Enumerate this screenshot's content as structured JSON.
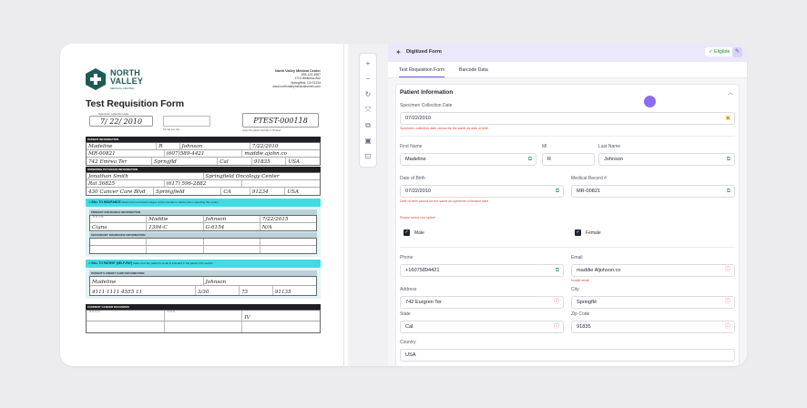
{
  "document": {
    "logo_line1": "NORTH",
    "logo_line2": "VALLEY",
    "logo_sub": "MEDICAL CENTER",
    "clinic_name": "North Valley Medical Center",
    "clinic_phone": "555-123-4567",
    "clinic_addr1": "1713 Wellness Ave",
    "clinic_addr2": "Springfield, CA 91234",
    "clinic_web": "www.northvalleymedicalcenter.com",
    "title": "Test Requisition Form",
    "specimen_label": "Specimen collection date",
    "specimen_date": "7/ 22/ 2010",
    "lab_use_label": "For lab use only",
    "specimen_id": "PTEST-000118",
    "specimen_id_label": "Apply the patient barcode or ID label",
    "patient_info_header": "PATIENT INFORMATION",
    "hw_first_name": "Madeline",
    "hw_mi": "R",
    "hw_last_name": "Johnson",
    "hw_dob": "7/22/2010",
    "hw_mrn": "MR-00821",
    "hw_phone": "(607)589-4421",
    "hw_email": "maddie.ajohn.co",
    "hw_address": "742 Emrea Ter",
    "hw_city": "Sprngfld",
    "hw_state": "Cal",
    "hw_zip": "91835",
    "hw_country": "USA",
    "physician_header": "ORDERING PHYSICIAN INFORMATION",
    "hw_physician": "Jonathan Smith",
    "hw_institution": "Springfield Oncology Center",
    "hw_npi": "Ral 36825",
    "hw_phys_phone": "(617) 596-2882",
    "hw_phys_address": "430 Cancer Care Blvd",
    "hw_phys_city": "Springfield",
    "hw_phys_state": "CA",
    "hw_phys_zip": "91234",
    "hw_phys_country": "USA",
    "bill_insurance": "BILL TO INSURANCE",
    "bill_insurance_note": "Attach front and back images of the insurance card(s) when selecting this option",
    "primary_ins_header": "PRIMARY INSURANCE INFORMATION",
    "hw_ins_first": "Maddie",
    "hw_ins_last": "Johnson",
    "hw_ins_dob": "7/22/2015",
    "hw_ins_company": "Cigna",
    "hw_policy": "1394-C",
    "hw_group": "G-6154",
    "hw_auth": "N/A",
    "secondary_ins_header": "SECONDARY INSURANCE INFORMATION",
    "bill_patient": "BILL TO PATIENT (SELF-PAY)",
    "bill_patient_note": "Make sure the patient's email is included in the patient info section",
    "card_header": "PATIENT'S CREDIT CARD INFORMATION",
    "hw_card_first": "Madeline",
    "hw_card_last": "Johnson",
    "hw_card_number": "4111 1111 4555 11",
    "hw_card_exp": "3/30",
    "hw_card_cvv": "73",
    "hw_card_zip": "91135",
    "diagnosis_header": "CURRENT CANCER DIAGNOSIS",
    "hw_stage": "IV"
  },
  "toolbar": {
    "zoom_in": "+",
    "zoom_out": "−",
    "rotate": "↻",
    "fit": "⤧",
    "copy": "⧉",
    "save": "▣",
    "export": "⊡"
  },
  "form": {
    "header_title": "Digitized Form",
    "eligible": "✓ Eligible",
    "tabs": [
      "Test Requisition Form",
      "Barcode Data"
    ],
    "section_title": "Patient Information",
    "specimen_label": "Specimen Collection Date",
    "specimen_value": "07/22/2010",
    "specimen_error": "Specimen collection date cannot be the same as date of birth",
    "first_name_label": "First Name",
    "first_name_value": "Madeline",
    "mi_label": "MI",
    "mi_value": "R",
    "last_name_label": "Last Name",
    "last_name_value": "Johnson",
    "dob_label": "Date of Birth",
    "dob_value": "07/22/2010",
    "dob_error": "Date of birth cannot be the same as specimen collection date",
    "mrn_label": "Medical Record #",
    "mrn_value": "MR-00821",
    "sex_error": "Please select one option",
    "male_label": "Male",
    "female_label": "Female",
    "phone_label": "Phone",
    "phone_value": "+16075894421",
    "email_label": "Email",
    "email_value": "maddie A​ljohson.co",
    "email_error": "Invalid email",
    "address_label": "Address",
    "address_value": "742 Eurgren Ter",
    "city_label": "City",
    "city_value": "Springflé",
    "state_label": "State",
    "state_value": "Cal",
    "zip_label": "Zip Code",
    "zip_value": "91835",
    "country_label": "Country",
    "country_value": "USA"
  },
  "colors": {
    "accent": "#6b5ce7",
    "banner": "#3fdce4",
    "success": "#1f8b4c",
    "error": "#e0483c"
  }
}
